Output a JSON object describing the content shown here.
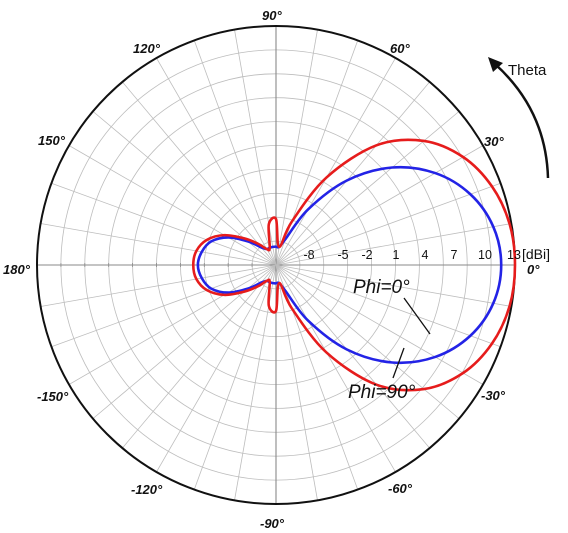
{
  "chart_data": {
    "type": "polar",
    "rotation_label": "Theta",
    "unit": "[dBi]",
    "angle_labels": [
      {
        "deg": 90,
        "text": "90°"
      },
      {
        "deg": 60,
        "text": "60°"
      },
      {
        "deg": 30,
        "text": "30°"
      },
      {
        "deg": 0,
        "text": "0°"
      },
      {
        "deg": -30,
        "text": "-30°"
      },
      {
        "deg": -60,
        "text": "-60°"
      },
      {
        "deg": -90,
        "text": "-90°"
      },
      {
        "deg": -120,
        "text": "-120°"
      },
      {
        "deg": -150,
        "text": "-150°"
      },
      {
        "deg": 180,
        "text": "180°"
      },
      {
        "deg": 150,
        "text": "150°"
      },
      {
        "deg": 120,
        "text": "120°"
      }
    ],
    "radial_ticks": [
      "-8",
      "-5",
      "-2",
      "1",
      "4",
      "7",
      "10",
      "13"
    ],
    "radial_tick_values": [
      -8,
      -5,
      -2,
      1,
      4,
      7,
      10,
      13
    ],
    "r_range": [
      -13,
      13
    ],
    "grid": true,
    "series": [
      {
        "name": "Phi=0°",
        "color": "#2323e6",
        "theta_deg": [
          0,
          10,
          20,
          30,
          40,
          50,
          60,
          70,
          80,
          90,
          100,
          110,
          120,
          130,
          140,
          150,
          160,
          170,
          180,
          190,
          200,
          210,
          220,
          230,
          240,
          250,
          260,
          270,
          280,
          290,
          300,
          310,
          320,
          330,
          340,
          350
        ],
        "gain_dbi": [
          11.5,
          11,
          9.5,
          7,
          3.5,
          -1,
          -6,
          -10,
          -11,
          -11,
          -11,
          -11,
          -11,
          -10.5,
          -9,
          -7,
          -5.5,
          -4.8,
          -4.5,
          -4.8,
          -5.5,
          -7,
          -9,
          -10.5,
          -11,
          -11,
          -11,
          -11,
          -11,
          -10,
          -6,
          -1,
          3.5,
          7,
          9.5,
          11
        ]
      },
      {
        "name": "Phi=90°",
        "color": "#e61c1c",
        "theta_deg": [
          0,
          10,
          20,
          30,
          40,
          50,
          60,
          70,
          80,
          90,
          100,
          110,
          120,
          130,
          140,
          150,
          160,
          170,
          180,
          190,
          200,
          210,
          220,
          230,
          240,
          250,
          260,
          270,
          280,
          290,
          300,
          310,
          320,
          330,
          340,
          350
        ],
        "gain_dbi": [
          13,
          12.8,
          12,
          10.5,
          8,
          4,
          -2,
          -8,
          -11,
          -8,
          -8.5,
          -11,
          -11,
          -10,
          -8.5,
          -6.5,
          -5,
          -4.2,
          -4,
          -4.2,
          -5,
          -6.5,
          -8.5,
          -10,
          -11,
          -11,
          -8.5,
          -8,
          -11,
          -8,
          -2,
          4,
          8,
          10.5,
          12,
          12.8
        ]
      }
    ],
    "annotations": [
      {
        "text": "Phi=0°",
        "series": "Phi=0°"
      },
      {
        "text": "Phi=90°",
        "series": "Phi=90°"
      }
    ]
  }
}
